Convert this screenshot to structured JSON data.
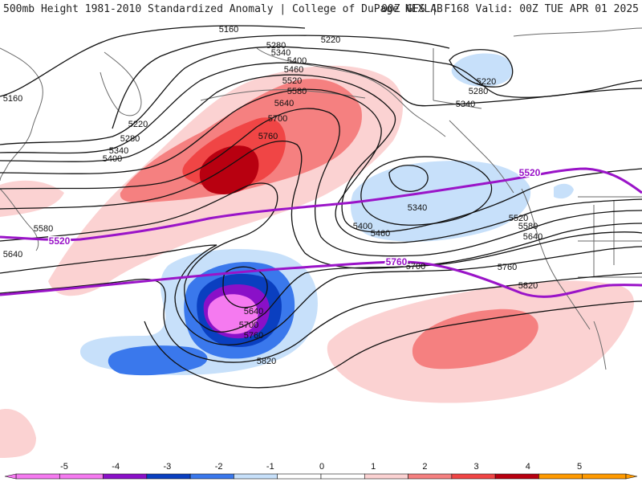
{
  "header": {
    "left": "500mb Height 1981-2010 Standardized Anomaly | College of DuPage NEXLAB",
    "right": "00Z GFS | F168 Valid: 00Z TUE APR 01 2025"
  },
  "colors": {
    "anom_neg5": "#f57af0",
    "anom_neg4": "#8a10c8",
    "anom_neg3": "#0a3fc0",
    "anom_neg2": "#3a78ec",
    "anom_neg1": "#c7e0fa",
    "anom_pos1": "#fbd2d2",
    "anom_pos2": "#f58080",
    "anom_pos3": "#f04545",
    "anom_pos4": "#b80010",
    "anom_pos5": "#ff9a00",
    "climo_contour": "#9a14c8",
    "height_contour": "#111111",
    "coastline": "#6a6a6a"
  },
  "height_labels": [
    "5160",
    "5220",
    "5280",
    "5340",
    "5400",
    "5460",
    "5520",
    "5580",
    "5640",
    "5700",
    "5760",
    "5820"
  ],
  "climo_labels": [
    "5520",
    "5760"
  ],
  "legend": {
    "ticks": [
      "-5",
      "-4",
      "-3",
      "-2",
      "-1",
      "0",
      "1",
      "2",
      "3",
      "4",
      "5"
    ]
  }
}
